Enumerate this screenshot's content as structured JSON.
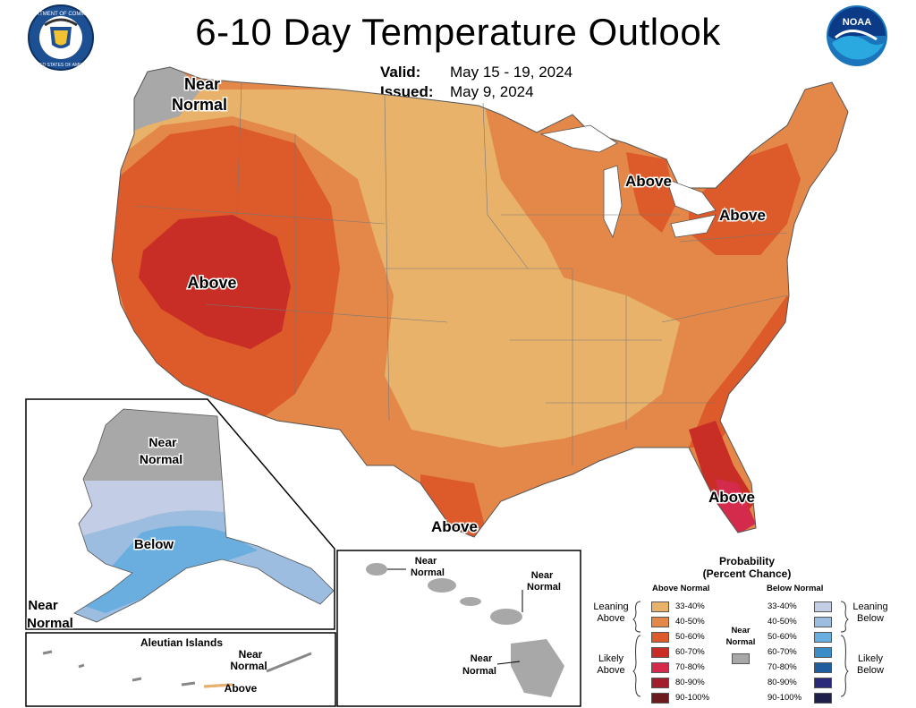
{
  "title": "6-10 Day Temperature Outlook",
  "valid": {
    "label": "Valid:",
    "value": "May 15 - 19, 2024"
  },
  "issued": {
    "label": "Issued:",
    "value": "May 9, 2024"
  },
  "logos": {
    "left": "UNITED STATES OF AMERICA",
    "right": "NOAA"
  },
  "labels": {
    "nw_near_1": "Near",
    "nw_near_2": "Normal",
    "sw_above": "Above",
    "gl_above": "Above",
    "ny_above": "Above",
    "fl_above": "Above",
    "tx_above": "Above",
    "ak_near_1": "Near",
    "ak_near_2": "Normal",
    "ak_below": "Below",
    "ak_sw_near_1": "Near",
    "ak_sw_near_2": "Normal",
    "aleutian_title": "Aleutian Islands",
    "al_near_1": "Near",
    "al_near_2": "Normal",
    "al_above": "Above",
    "hi1_1": "Near",
    "hi1_2": "Normal",
    "hi2_1": "Near",
    "hi2_2": "Normal",
    "hi3_1": "Near",
    "hi3_2": "Normal"
  },
  "legend": {
    "title_1": "Probability",
    "title_2": "(Percent Chance)",
    "above_header": "Above Normal",
    "below_header": "Below Normal",
    "leaning_above": [
      "Leaning",
      "Above"
    ],
    "likely_above": [
      "Likely",
      "Above"
    ],
    "leaning_below": [
      "Leaning",
      "Below"
    ],
    "likely_below": [
      "Likely",
      "Below"
    ],
    "near_normal": [
      "Near",
      "Normal"
    ],
    "near_color": "#a8a8a8",
    "above": [
      {
        "range": "33-40%",
        "color": "#e8b26b"
      },
      {
        "range": "40-50%",
        "color": "#e4884a"
      },
      {
        "range": "50-60%",
        "color": "#dd5a2a"
      },
      {
        "range": "60-70%",
        "color": "#c92e26"
      },
      {
        "range": "70-80%",
        "color": "#d42a4b"
      },
      {
        "range": "80-90%",
        "color": "#a21d2d"
      },
      {
        "range": "90-100%",
        "color": "#6b1a1d"
      }
    ],
    "below": [
      {
        "range": "33-40%",
        "color": "#c3cde6"
      },
      {
        "range": "40-50%",
        "color": "#9dbde0"
      },
      {
        "range": "50-60%",
        "color": "#6aaedf"
      },
      {
        "range": "60-70%",
        "color": "#3b8cc7"
      },
      {
        "range": "70-80%",
        "color": "#1f5e9e"
      },
      {
        "range": "80-90%",
        "color": "#2b2a7a"
      },
      {
        "range": "90-100%",
        "color": "#1e1f4a"
      }
    ]
  }
}
